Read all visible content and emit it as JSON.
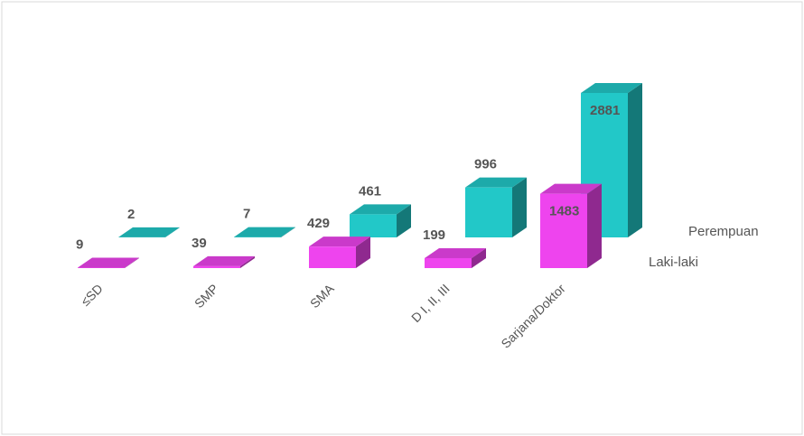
{
  "chart_data": {
    "type": "bar3d",
    "categories": [
      "≤SD",
      "SMP",
      "SMA",
      "D I, II, III",
      "Sarjana/Doktor"
    ],
    "series": [
      {
        "name": "Laki-laki",
        "color": "#ee44ee",
        "values": [
          9,
          39,
          429,
          199,
          1483
        ]
      },
      {
        "name": "Perempuan",
        "color": "#22c8c8",
        "values": [
          2,
          7,
          461,
          996,
          2881
        ]
      }
    ]
  }
}
